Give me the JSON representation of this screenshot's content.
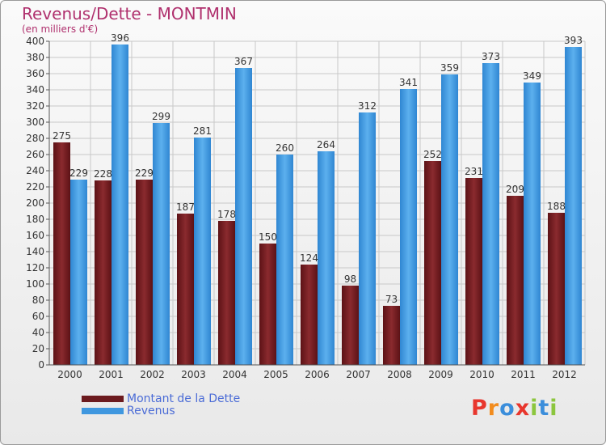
{
  "header": {
    "title": "Revenus/Dette - MONTMIN",
    "subtitle": "(en milliers d'€)"
  },
  "colors": {
    "debt": "#7a1f24",
    "revenue": "#3f97df",
    "grid": "#c8c8c8",
    "axis_text": "#333333"
  },
  "chart_data": {
    "type": "bar",
    "title": "Revenus/Dette - MONTMIN",
    "subtitle": "(en milliers d'€)",
    "categories": [
      "2000",
      "2001",
      "2002",
      "2003",
      "2004",
      "2005",
      "2006",
      "2007",
      "2008",
      "2009",
      "2010",
      "2011",
      "2012"
    ],
    "series": [
      {
        "name": "Montant de la Dette",
        "values": [
          275,
          228,
          229,
          187,
          178,
          150,
          124,
          98,
          73,
          252,
          231,
          209,
          188
        ]
      },
      {
        "name": "Revenus",
        "values": [
          229,
          396,
          299,
          281,
          367,
          260,
          264,
          312,
          341,
          359,
          373,
          349,
          393
        ]
      }
    ],
    "ylim": [
      0,
      400
    ],
    "yticks": [
      "0",
      "20",
      "40",
      "60",
      "80",
      "100",
      "120",
      "140",
      "160",
      "180",
      "200",
      "220",
      "240",
      "260",
      "280",
      "300",
      "320",
      "340",
      "360",
      "380",
      "400"
    ],
    "grid": true,
    "legend_position": "bottom-left"
  },
  "legend": {
    "items": [
      {
        "label": "Montant de la Dette"
      },
      {
        "label": "Revenus"
      }
    ]
  },
  "logo": {
    "text": "Proxiti",
    "letters": [
      "P",
      "r",
      "o",
      "x",
      "i",
      "t",
      "i"
    ],
    "letter_colors": [
      "#e8362d",
      "#f28c1e",
      "#3b8edb",
      "#e8362d",
      "#8cc63e",
      "#3b8edb",
      "#8cc63e"
    ]
  }
}
